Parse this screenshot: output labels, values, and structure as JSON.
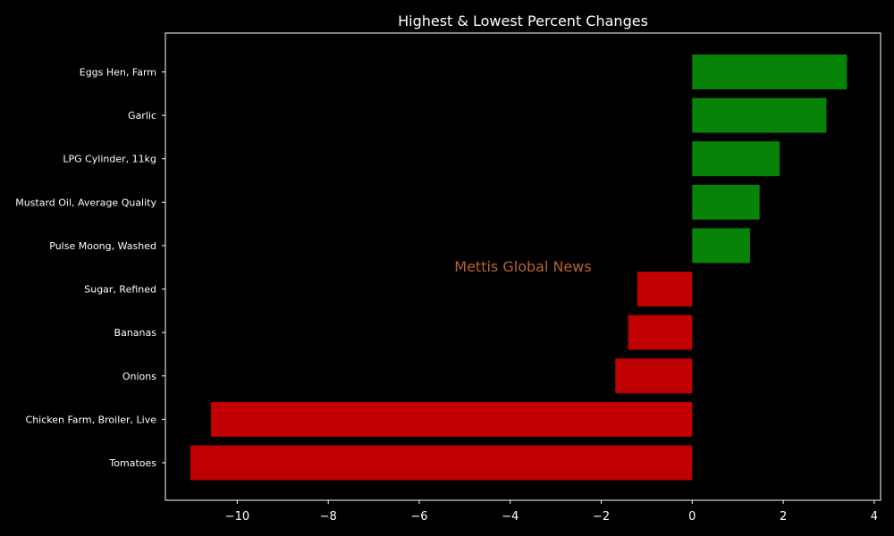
{
  "chart_data": {
    "type": "bar",
    "orientation": "horizontal",
    "title": "Highest & Lowest Percent Changes",
    "xlabel": "",
    "ylabel": "",
    "categories": [
      "Eggs Hen, Farm",
      "Garlic",
      "LPG Cylinder, 11kg",
      "Mustard Oil, Average Quality",
      "Pulse Moong, Washed",
      "Sugar, Refined",
      "Bananas",
      "Onions",
      "Chicken Farm, Broiler, Live",
      "Tomatoes"
    ],
    "values": [
      3.4,
      2.95,
      1.92,
      1.48,
      1.27,
      -1.21,
      -1.41,
      -1.69,
      -10.58,
      -11.03
    ],
    "xlim": [
      -11.58,
      4.14
    ],
    "xticks": [
      -10,
      -8,
      -6,
      -4,
      -2,
      0,
      2,
      4
    ],
    "xtick_labels": [
      "−10",
      "−8",
      "−6",
      "−4",
      "−2",
      "0",
      "2",
      "4"
    ],
    "grid": false,
    "colors": {
      "positive": "#078407",
      "negative": "#c00000",
      "background": "#000000",
      "axes": "#ffffff",
      "text": "#ffffff",
      "watermark": "#b8612e"
    }
  },
  "watermark": {
    "text": "Mettis Global News"
  }
}
